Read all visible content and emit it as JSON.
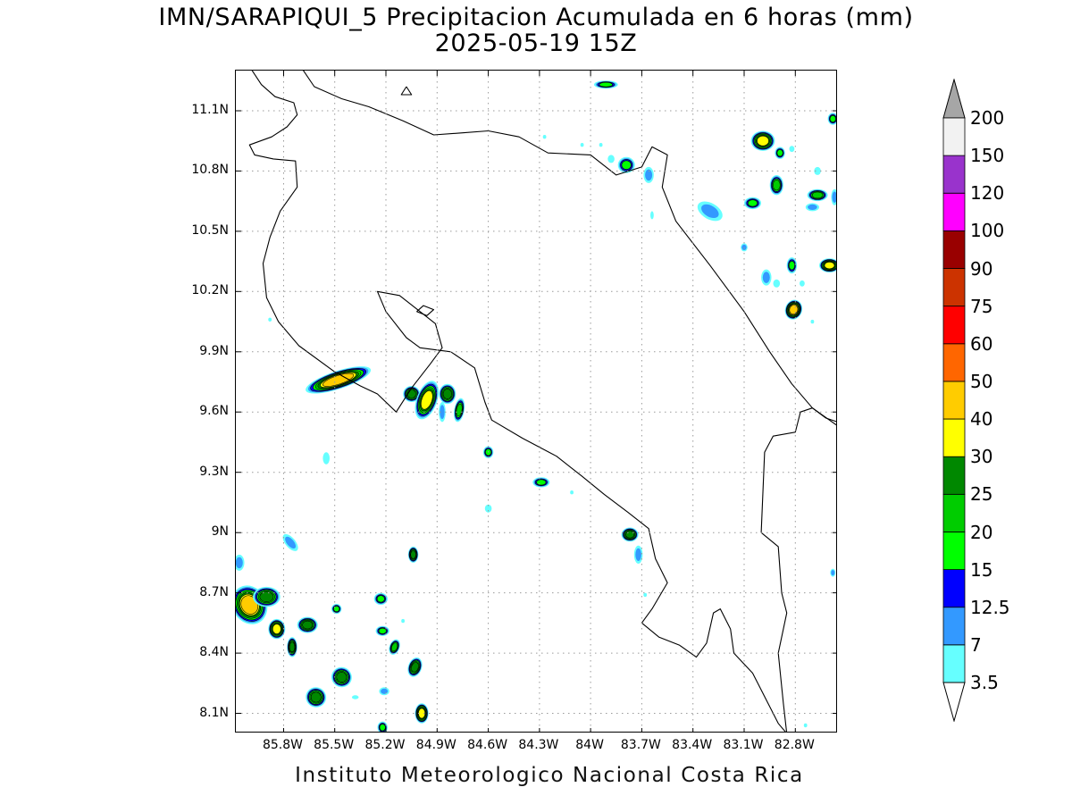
{
  "title": {
    "line1": "IMN/SARAPIQUI_5 Precipitacion Acumulada en 6 horas (mm)",
    "line2": "2025-05-19 15Z"
  },
  "footer": "Instituto Meteorologico Nacional Costa Rica",
  "map": {
    "lon_range": [
      -86.08,
      -82.55
    ],
    "lat_range": [
      8.0,
      11.3
    ],
    "grid": true,
    "lat_ticks": [
      "11.1N",
      "10.8N",
      "10.5N",
      "10.2N",
      "9.9N",
      "9.6N",
      "9.3N",
      "9N",
      "8.7N",
      "8.4N",
      "8.1N"
    ],
    "lat_values": [
      11.1,
      10.8,
      10.5,
      10.2,
      9.9,
      9.6,
      9.3,
      9.0,
      8.7,
      8.4,
      8.1
    ],
    "lon_ticks": [
      "85.8W",
      "85.5W",
      "85.2W",
      "84.9W",
      "84.6W",
      "84.3W",
      "84W",
      "83.7W",
      "83.4W",
      "83.1W",
      "82.8W"
    ],
    "lon_values": [
      -85.8,
      -85.5,
      -85.2,
      -84.9,
      -84.6,
      -84.3,
      -84.0,
      -83.7,
      -83.4,
      -83.1,
      -82.8
    ],
    "coastline": [
      [
        [
          -86.0,
          11.32
        ],
        [
          -85.93,
          11.23
        ],
        [
          -85.85,
          11.17
        ],
        [
          -85.74,
          11.14
        ],
        [
          -85.72,
          11.08
        ],
        [
          -85.78,
          11.02
        ],
        [
          -85.87,
          10.97
        ],
        [
          -86.0,
          10.93
        ],
        [
          -85.97,
          10.88
        ],
        [
          -85.86,
          10.86
        ],
        [
          -85.73,
          10.85
        ],
        [
          -85.72,
          10.72
        ],
        [
          -85.82,
          10.6
        ],
        [
          -85.88,
          10.47
        ],
        [
          -85.92,
          10.34
        ],
        [
          -85.9,
          10.17
        ],
        [
          -85.83,
          10.05
        ],
        [
          -85.71,
          9.93
        ],
        [
          -85.5,
          9.8
        ],
        [
          -85.35,
          9.73
        ],
        [
          -85.25,
          9.69
        ],
        [
          -85.14,
          9.6
        ],
        [
          -85.05,
          9.72
        ],
        [
          -84.94,
          9.84
        ],
        [
          -84.87,
          9.92
        ],
        [
          -84.91,
          10.04
        ],
        [
          -85.12,
          10.18
        ],
        [
          -85.25,
          10.2
        ],
        [
          -85.2,
          10.1
        ],
        [
          -85.08,
          9.97
        ],
        [
          -85.0,
          9.92
        ],
        [
          -84.82,
          9.9
        ],
        [
          -84.68,
          9.82
        ],
        [
          -84.62,
          9.65
        ],
        [
          -84.58,
          9.56
        ],
        [
          -84.4,
          9.47
        ],
        [
          -84.2,
          9.38
        ],
        [
          -84.05,
          9.28
        ],
        [
          -83.92,
          9.19
        ],
        [
          -83.78,
          9.1
        ],
        [
          -83.66,
          9.02
        ],
        [
          -83.62,
          8.87
        ],
        [
          -83.55,
          8.75
        ],
        [
          -83.64,
          8.62
        ],
        [
          -83.7,
          8.55
        ],
        [
          -83.6,
          8.48
        ],
        [
          -83.48,
          8.44
        ],
        [
          -83.38,
          8.38
        ],
        [
          -83.32,
          8.45
        ],
        [
          -83.28,
          8.6
        ],
        [
          -83.24,
          8.62
        ],
        [
          -83.18,
          8.52
        ],
        [
          -83.16,
          8.4
        ],
        [
          -83.05,
          8.3
        ],
        [
          -82.9,
          8.05
        ],
        [
          -82.85,
          8.0
        ]
      ],
      [
        [
          -85.7,
          11.32
        ],
        [
          -85.62,
          11.22
        ],
        [
          -85.46,
          11.16
        ],
        [
          -85.3,
          11.12
        ],
        [
          -85.1,
          11.05
        ],
        [
          -84.92,
          10.98
        ],
        [
          -84.75,
          10.99
        ],
        [
          -84.6,
          11.0
        ],
        [
          -84.42,
          10.97
        ],
        [
          -84.25,
          10.89
        ],
        [
          -84.0,
          10.88
        ],
        [
          -83.85,
          10.78
        ],
        [
          -83.7,
          10.82
        ],
        [
          -83.64,
          10.92
        ],
        [
          -83.55,
          10.88
        ],
        [
          -83.58,
          10.72
        ],
        [
          -83.5,
          10.55
        ],
        [
          -83.3,
          10.33
        ],
        [
          -83.1,
          10.1
        ],
        [
          -82.95,
          9.9
        ],
        [
          -82.82,
          9.74
        ],
        [
          -82.7,
          9.62
        ],
        [
          -82.55,
          9.53
        ]
      ],
      [
        [
          -83.0,
          9.0
        ],
        [
          -82.98,
          9.4
        ],
        [
          -82.93,
          9.48
        ],
        [
          -82.8,
          9.5
        ],
        [
          -82.77,
          9.6
        ],
        [
          -82.7,
          9.62
        ],
        [
          -82.62,
          9.57
        ],
        [
          -82.55,
          9.55
        ]
      ],
      [
        [
          -83.0,
          9.0
        ],
        [
          -82.9,
          8.93
        ],
        [
          -82.88,
          8.7
        ],
        [
          -82.85,
          8.6
        ],
        [
          -82.9,
          8.4
        ],
        [
          -82.87,
          8.15
        ],
        [
          -82.85,
          8.0
        ]
      ],
      [
        [
          -85.02,
          10.1
        ],
        [
          -84.96,
          10.08
        ],
        [
          -84.92,
          10.11
        ],
        [
          -84.98,
          10.13
        ],
        [
          -85.02,
          10.1
        ]
      ],
      [
        [
          -85.08,
          11.22
        ],
        [
          -85.05,
          11.18
        ],
        [
          -85.11,
          11.18
        ],
        [
          -85.08,
          11.22
        ]
      ]
    ]
  },
  "colorbar": {
    "levels": [
      "3.5",
      "7",
      "12.5",
      "15",
      "20",
      "25",
      "30",
      "40",
      "50",
      "60",
      "75",
      "90",
      "100",
      "120",
      "150",
      "200"
    ],
    "colors": [
      "#66ffff",
      "#3399ff",
      "#0000ff",
      "#00ff00",
      "#00cc00",
      "#008800",
      "#ffff00",
      "#ffcc00",
      "#ff6600",
      "#ff0000",
      "#cc3300",
      "#990000",
      "#ff00ff",
      "#9933cc",
      "#f2f2f2",
      "#a6a6a6"
    ]
  },
  "precip_cells": [
    {
      "lon": -85.48,
      "lat": 9.76,
      "rx": 0.2,
      "ry": 0.045,
      "rot": 18,
      "max": 45
    },
    {
      "lon": -85.05,
      "lat": 9.69,
      "rx": 0.05,
      "ry": 0.04,
      "rot": 0,
      "max": 25
    },
    {
      "lon": -84.96,
      "lat": 9.66,
      "rx": 0.06,
      "ry": 0.1,
      "rot": -20,
      "max": 35
    },
    {
      "lon": -84.84,
      "lat": 9.69,
      "rx": 0.05,
      "ry": 0.05,
      "rot": 0,
      "max": 25
    },
    {
      "lon": -84.77,
      "lat": 9.61,
      "rx": 0.03,
      "ry": 0.06,
      "rot": -10,
      "max": 20
    },
    {
      "lon": -84.87,
      "lat": 9.6,
      "rx": 0.02,
      "ry": 0.05,
      "rot": 0,
      "max": 10
    },
    {
      "lon": -85.55,
      "lat": 9.37,
      "rx": 0.02,
      "ry": 0.03,
      "rot": 0,
      "max": 5
    },
    {
      "lon": -84.6,
      "lat": 9.4,
      "rx": 0.03,
      "ry": 0.03,
      "rot": 0,
      "max": 15
    },
    {
      "lon": -84.29,
      "lat": 9.25,
      "rx": 0.05,
      "ry": 0.025,
      "rot": 0,
      "max": 15
    },
    {
      "lon": -84.6,
      "lat": 9.12,
      "rx": 0.02,
      "ry": 0.02,
      "rot": 0,
      "max": 5
    },
    {
      "lon": -84.11,
      "lat": 9.2,
      "rx": 0.01,
      "ry": 0.01,
      "rot": 0,
      "max": 5
    },
    {
      "lon": -83.77,
      "lat": 8.99,
      "rx": 0.05,
      "ry": 0.035,
      "rot": 0,
      "max": 25
    },
    {
      "lon": -83.72,
      "lat": 8.89,
      "rx": 0.025,
      "ry": 0.045,
      "rot": 0,
      "max": 10
    },
    {
      "lon": -83.68,
      "lat": 8.69,
      "rx": 0.01,
      "ry": 0.01,
      "rot": 0,
      "max": 5
    },
    {
      "lon": -86.0,
      "lat": 8.64,
      "rx": 0.1,
      "ry": 0.1,
      "rot": 30,
      "max": 40
    },
    {
      "lon": -85.9,
      "lat": 8.68,
      "rx": 0.08,
      "ry": 0.05,
      "rot": 0,
      "max": 25
    },
    {
      "lon": -86.06,
      "lat": 8.85,
      "rx": 0.03,
      "ry": 0.04,
      "rot": 0,
      "max": 10
    },
    {
      "lon": -85.76,
      "lat": 8.95,
      "rx": 0.06,
      "ry": 0.025,
      "rot": -50,
      "max": 7
    },
    {
      "lon": -85.84,
      "lat": 8.52,
      "rx": 0.05,
      "ry": 0.05,
      "rot": 0,
      "max": 35
    },
    {
      "lon": -85.66,
      "lat": 8.54,
      "rx": 0.06,
      "ry": 0.04,
      "rot": 0,
      "max": 25
    },
    {
      "lon": -85.75,
      "lat": 8.43,
      "rx": 0.03,
      "ry": 0.05,
      "rot": 0,
      "max": 25
    },
    {
      "lon": -85.49,
      "lat": 8.62,
      "rx": 0.03,
      "ry": 0.025,
      "rot": 0,
      "max": 15
    },
    {
      "lon": -85.23,
      "lat": 8.67,
      "rx": 0.04,
      "ry": 0.03,
      "rot": 0,
      "max": 15
    },
    {
      "lon": -85.22,
      "lat": 8.51,
      "rx": 0.04,
      "ry": 0.025,
      "rot": 0,
      "max": 15
    },
    {
      "lon": -85.15,
      "lat": 8.43,
      "rx": 0.03,
      "ry": 0.04,
      "rot": -20,
      "max": 20
    },
    {
      "lon": -85.04,
      "lat": 8.89,
      "rx": 0.03,
      "ry": 0.04,
      "rot": 0,
      "max": 25
    },
    {
      "lon": -85.03,
      "lat": 8.33,
      "rx": 0.04,
      "ry": 0.05,
      "rot": -20,
      "max": 25
    },
    {
      "lon": -85.46,
      "lat": 8.28,
      "rx": 0.06,
      "ry": 0.05,
      "rot": -30,
      "max": 25
    },
    {
      "lon": -85.61,
      "lat": 8.18,
      "rx": 0.06,
      "ry": 0.05,
      "rot": -30,
      "max": 25
    },
    {
      "lon": -85.21,
      "lat": 8.21,
      "rx": 0.03,
      "ry": 0.02,
      "rot": 0,
      "max": 10
    },
    {
      "lon": -84.99,
      "lat": 8.1,
      "rx": 0.04,
      "ry": 0.05,
      "rot": 0,
      "max": 35
    },
    {
      "lon": -85.22,
      "lat": 8.03,
      "rx": 0.03,
      "ry": 0.03,
      "rot": 0,
      "max": 15
    },
    {
      "lon": -85.1,
      "lat": 8.56,
      "rx": 0.01,
      "ry": 0.01,
      "rot": 0,
      "max": 5
    },
    {
      "lon": -85.38,
      "lat": 8.18,
      "rx": 0.02,
      "ry": 0.01,
      "rot": 0,
      "max": 5
    },
    {
      "lon": -83.91,
      "lat": 11.23,
      "rx": 0.07,
      "ry": 0.02,
      "rot": 0,
      "max": 15
    },
    {
      "lon": -83.79,
      "lat": 10.83,
      "rx": 0.05,
      "ry": 0.04,
      "rot": 0,
      "max": 15
    },
    {
      "lon": -83.66,
      "lat": 10.78,
      "rx": 0.03,
      "ry": 0.04,
      "rot": 0,
      "max": 7
    },
    {
      "lon": -83.64,
      "lat": 10.58,
      "rx": 0.01,
      "ry": 0.02,
      "rot": 0,
      "max": 5
    },
    {
      "lon": -83.88,
      "lat": 10.86,
      "rx": 0.02,
      "ry": 0.02,
      "rot": 0,
      "max": 5
    },
    {
      "lon": -83.94,
      "lat": 10.93,
      "rx": 0.01,
      "ry": 0.01,
      "rot": 0,
      "max": 5
    },
    {
      "lon": -83.3,
      "lat": 10.6,
      "rx": 0.08,
      "ry": 0.04,
      "rot": -30,
      "max": 7
    },
    {
      "lon": -82.99,
      "lat": 10.95,
      "rx": 0.07,
      "ry": 0.05,
      "rot": 0,
      "max": 35
    },
    {
      "lon": -82.89,
      "lat": 10.89,
      "rx": 0.03,
      "ry": 0.03,
      "rot": 0,
      "max": 15
    },
    {
      "lon": -82.82,
      "lat": 10.91,
      "rx": 0.015,
      "ry": 0.015,
      "rot": 0,
      "max": 5
    },
    {
      "lon": -82.91,
      "lat": 10.73,
      "rx": 0.04,
      "ry": 0.05,
      "rot": 0,
      "max": 20
    },
    {
      "lon": -83.05,
      "lat": 10.64,
      "rx": 0.05,
      "ry": 0.03,
      "rot": 0,
      "max": 15
    },
    {
      "lon": -82.67,
      "lat": 10.68,
      "rx": 0.06,
      "ry": 0.03,
      "rot": 0,
      "max": 20
    },
    {
      "lon": -82.7,
      "lat": 10.62,
      "rx": 0.04,
      "ry": 0.02,
      "rot": 0,
      "max": 7
    },
    {
      "lon": -82.58,
      "lat": 11.06,
      "rx": 0.03,
      "ry": 0.03,
      "rot": 0,
      "max": 15
    },
    {
      "lon": -82.57,
      "lat": 10.67,
      "rx": 0.02,
      "ry": 0.04,
      "rot": 0,
      "max": 7
    },
    {
      "lon": -82.67,
      "lat": 10.8,
      "rx": 0.02,
      "ry": 0.02,
      "rot": 0,
      "max": 5
    },
    {
      "lon": -82.6,
      "lat": 10.33,
      "rx": 0.06,
      "ry": 0.035,
      "rot": 0,
      "max": 30
    },
    {
      "lon": -82.81,
      "lat": 10.11,
      "rx": 0.05,
      "ry": 0.05,
      "rot": -20,
      "max": 45
    },
    {
      "lon": -82.82,
      "lat": 10.33,
      "rx": 0.03,
      "ry": 0.04,
      "rot": 0,
      "max": 15
    },
    {
      "lon": -82.97,
      "lat": 10.27,
      "rx": 0.03,
      "ry": 0.04,
      "rot": 0,
      "max": 7
    },
    {
      "lon": -82.91,
      "lat": 10.24,
      "rx": 0.02,
      "ry": 0.02,
      "rot": 0,
      "max": 5
    },
    {
      "lon": -83.1,
      "lat": 10.42,
      "rx": 0.02,
      "ry": 0.02,
      "rot": 0,
      "max": 7
    },
    {
      "lon": -82.76,
      "lat": 10.24,
      "rx": 0.015,
      "ry": 0.015,
      "rot": 0,
      "max": 5
    },
    {
      "lon": -82.7,
      "lat": 10.05,
      "rx": 0.01,
      "ry": 0.01,
      "rot": 0,
      "max": 5
    },
    {
      "lon": -82.58,
      "lat": 8.8,
      "rx": 0.015,
      "ry": 0.02,
      "rot": 0,
      "max": 7
    },
    {
      "lon": -82.74,
      "lat": 8.04,
      "rx": 0.01,
      "ry": 0.01,
      "rot": 0,
      "max": 5
    },
    {
      "lon": -84.27,
      "lat": 10.97,
      "rx": 0.01,
      "ry": 0.01,
      "rot": 0,
      "max": 5
    },
    {
      "lon": -84.05,
      "lat": 10.93,
      "rx": 0.01,
      "ry": 0.01,
      "rot": 0,
      "max": 5
    },
    {
      "lon": -85.88,
      "lat": 10.06,
      "rx": 0.01,
      "ry": 0.01,
      "rot": 0,
      "max": 5
    }
  ]
}
